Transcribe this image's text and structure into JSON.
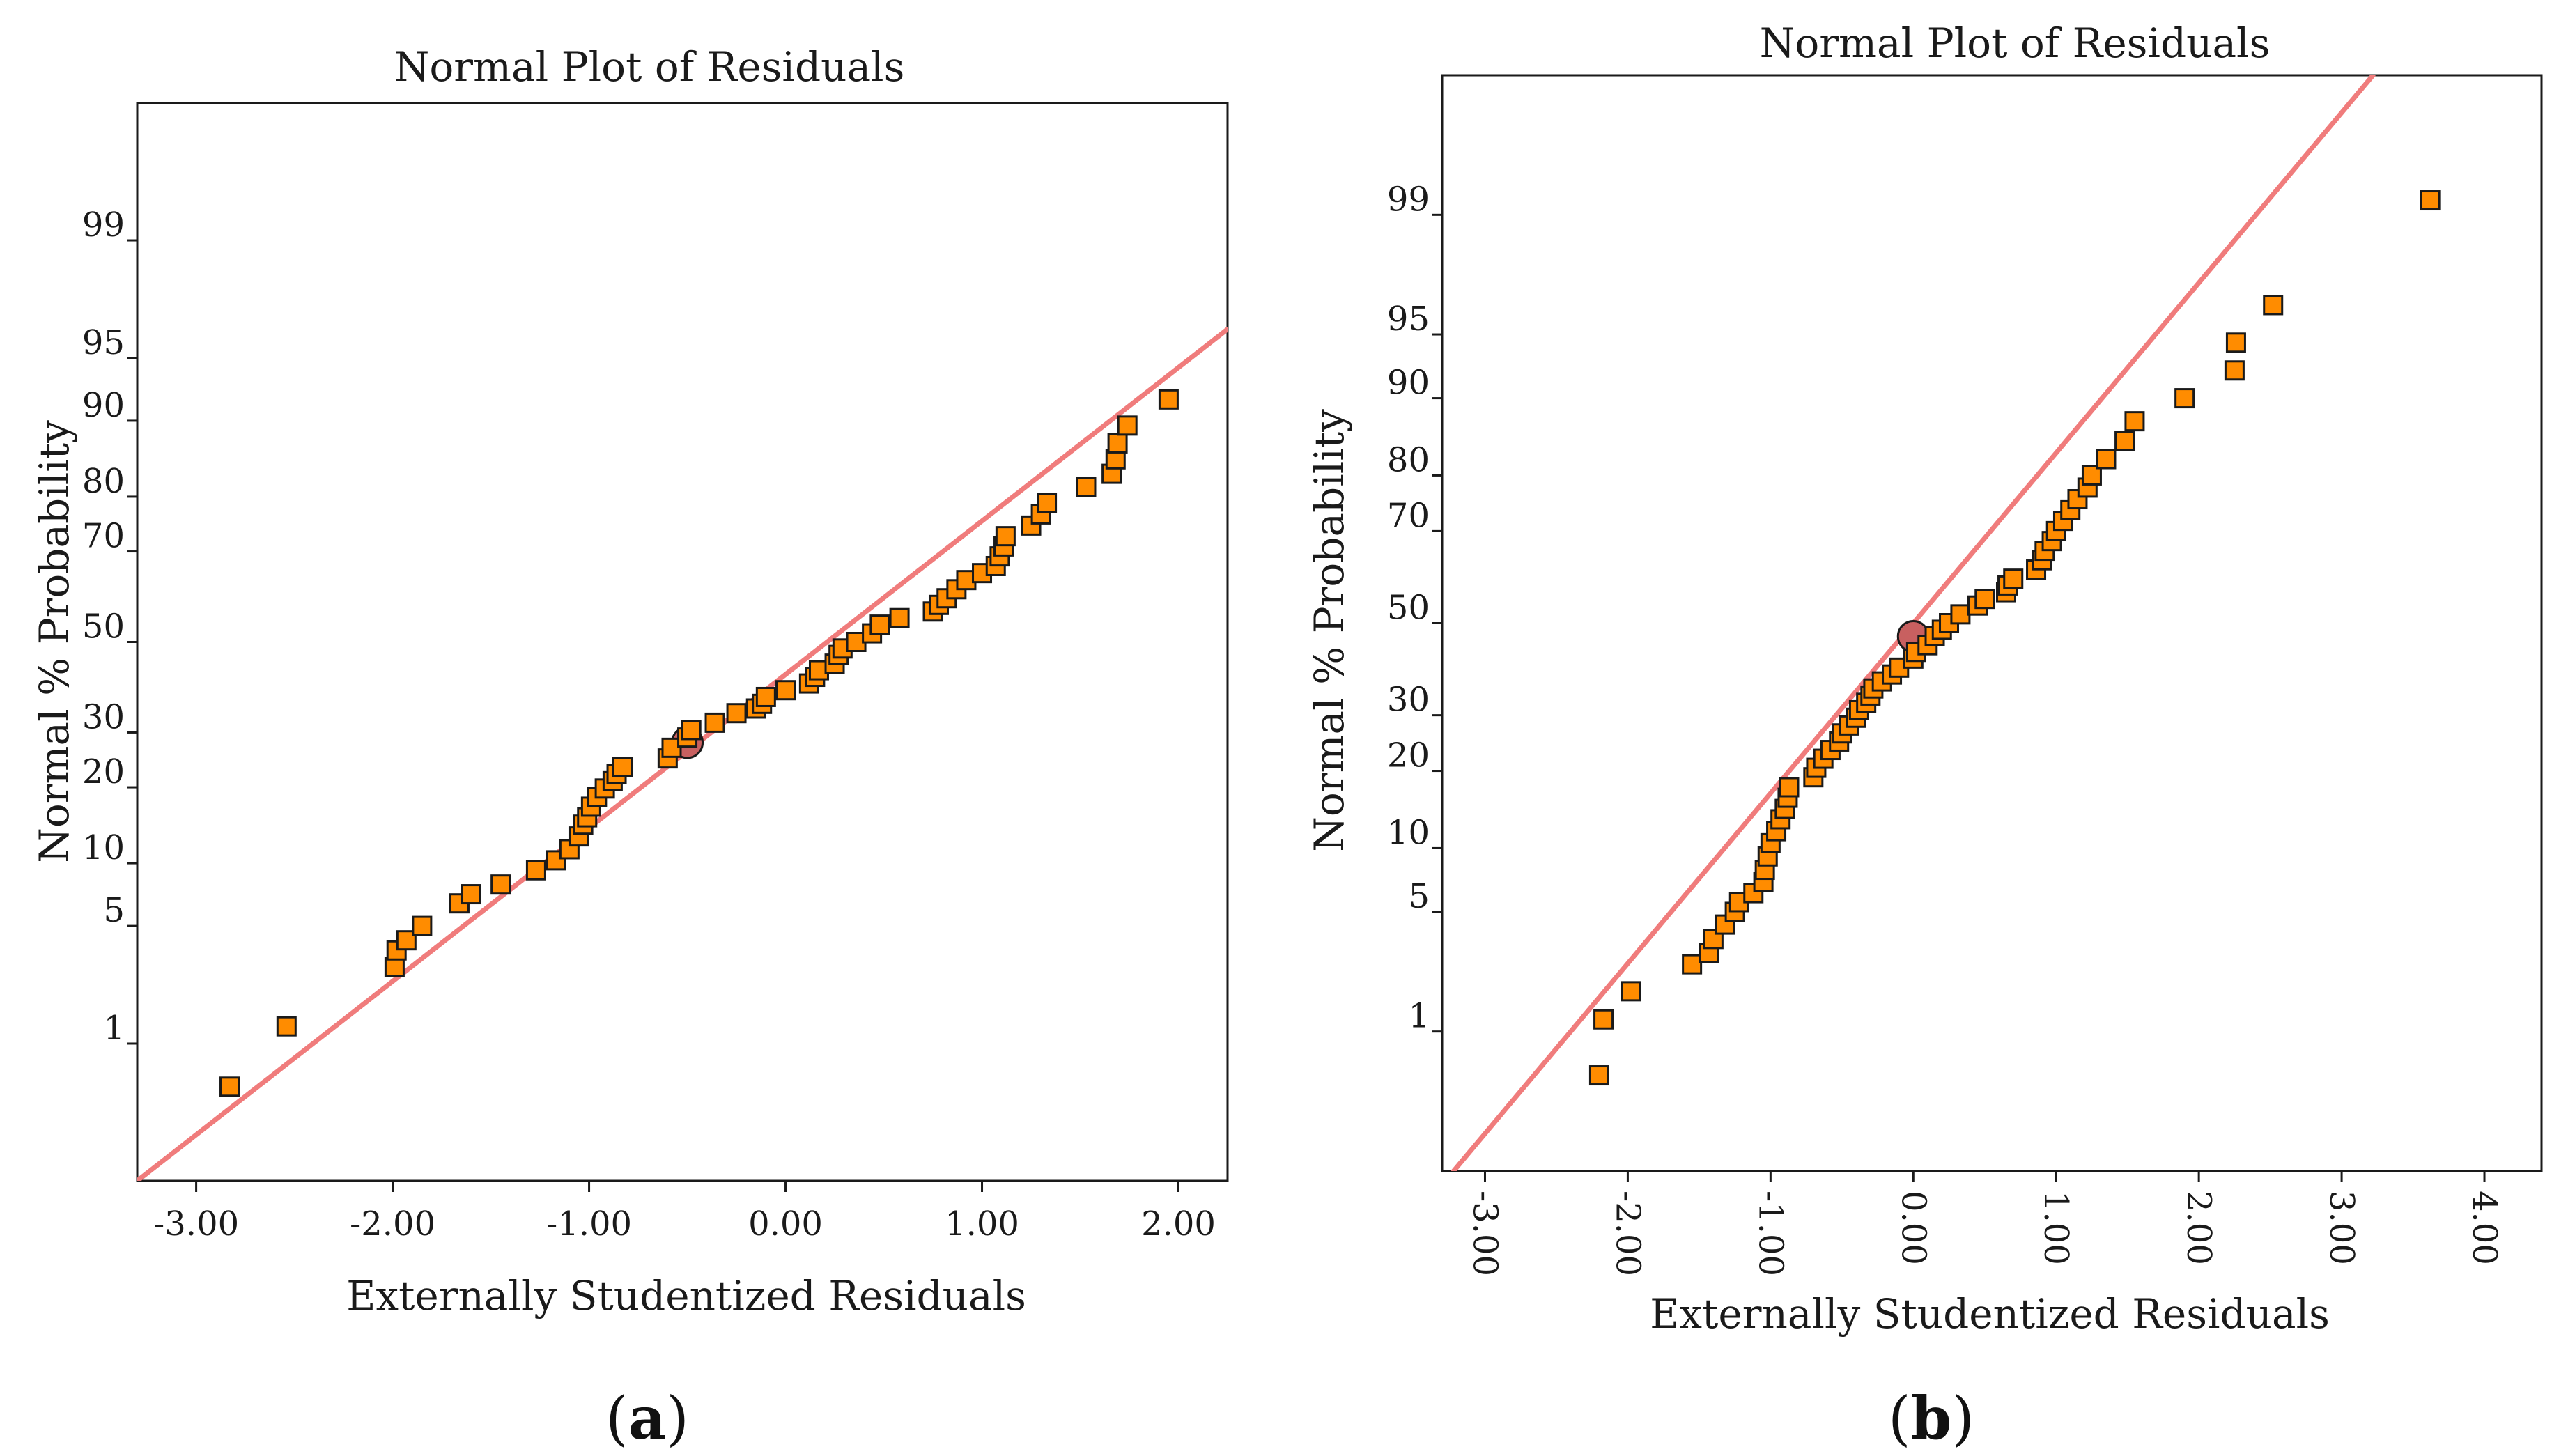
{
  "figure": {
    "point_color": "#FF8C00",
    "point_stroke": "#1a1a1a",
    "line_color": "#F07C7C",
    "highlight_color": "#C86060"
  },
  "chart_data": [
    {
      "type": "scatter",
      "panel_label": "(a)",
      "panel_letter": "a",
      "title": "Normal Plot of Residuals",
      "xlabel": "Externally Studentized Residuals",
      "ylabel": "Normal % Probability",
      "x_scale": "linear",
      "y_scale": "normal-probability",
      "xlim": [
        -3.3,
        2.25
      ],
      "ylim": [
        0.09,
        99.91
      ],
      "x_ticks": [
        -3,
        -2,
        -1,
        0,
        1,
        2
      ],
      "x_tick_labels": [
        "-3.00",
        "-2.00",
        "-1.00",
        "0.00",
        "1.00",
        "2.00"
      ],
      "x_tick_rotation": 0,
      "y_ticks": [
        1,
        5,
        10,
        20,
        30,
        50,
        70,
        80,
        90,
        95,
        99
      ],
      "y_tick_labels": [
        "1",
        "5",
        "10",
        "20",
        "30",
        "50",
        "70",
        "80",
        "90",
        "95",
        "99"
      ],
      "reference_line": {
        "x": [
          -3.3,
          2.25
        ],
        "y": [
          0.09,
          96.5
        ]
      },
      "highlight_point": {
        "x": -0.5,
        "y": 28
      },
      "series": [
        {
          "name": "Residuals",
          "marker": "square",
          "x": [
            -2.83,
            -2.54,
            -1.99,
            -1.98,
            -1.93,
            -1.85,
            -1.66,
            -1.6,
            -1.45,
            -1.27,
            -1.17,
            -1.1,
            -1.05,
            -1.03,
            -1.01,
            -0.99,
            -0.96,
            -0.92,
            -0.88,
            -0.86,
            -0.83,
            -0.6,
            -0.58,
            -0.5,
            -0.48,
            -0.36,
            -0.25,
            -0.15,
            -0.12,
            -0.1,
            0.0,
            0.12,
            0.15,
            0.17,
            0.25,
            0.27,
            0.29,
            0.36,
            0.44,
            0.48,
            0.58,
            0.75,
            0.78,
            0.82,
            0.87,
            0.92,
            1.0,
            1.07,
            1.09,
            1.11,
            1.12,
            1.25,
            1.3,
            1.33,
            1.53,
            1.66,
            1.68,
            1.69,
            1.74,
            1.95
          ],
          "y": [
            0.5,
            1.3,
            3,
            3.7,
            4.2,
            5,
            6.5,
            7.2,
            8,
            9.3,
            10.3,
            11.5,
            13,
            14.5,
            15.5,
            17,
            18.5,
            19.8,
            21,
            22.2,
            23.5,
            25,
            27,
            29,
            30.5,
            32,
            34,
            35,
            36,
            37.5,
            39,
            40.5,
            42,
            43.5,
            45,
            47,
            48.5,
            50,
            52,
            54,
            55.5,
            57,
            58.5,
            60,
            62,
            64,
            65.5,
            67,
            69,
            71,
            73,
            75,
            77,
            79,
            81.5,
            83.5,
            85.5,
            87.5,
            89.5,
            92
          ]
        }
      ]
    },
    {
      "type": "scatter",
      "panel_label": "(b)",
      "panel_letter": "b",
      "title": "Normal Plot of Residuals",
      "xlabel": "Externally Studentized Residuals",
      "ylabel": "Normal % Probability",
      "x_scale": "linear",
      "y_scale": "normal-probability",
      "xlim": [
        -3.3,
        4.4
      ],
      "ylim": [
        0.09,
        99.91
      ],
      "x_ticks": [
        -3,
        -2,
        -1,
        0,
        1,
        2,
        3,
        4
      ],
      "x_tick_labels": [
        "-3.00",
        "-2.00",
        "-1.00",
        "0.00",
        "1.00",
        "2.00",
        "3.00",
        "4.00"
      ],
      "x_tick_rotation": 90,
      "y_ticks": [
        1,
        5,
        10,
        20,
        30,
        50,
        70,
        80,
        90,
        95,
        99
      ],
      "y_tick_labels": [
        "1",
        "5",
        "10",
        "20",
        "30",
        "50",
        "70",
        "80",
        "90",
        "95",
        "99"
      ],
      "reference_line": {
        "x": [
          -3.22,
          3.22
        ],
        "y": [
          0.09,
          99.91
        ]
      },
      "highlight_point": {
        "x": 0.0,
        "y": 47
      },
      "series": [
        {
          "name": "Residuals",
          "marker": "square",
          "x": [
            -2.2,
            -2.17,
            -1.98,
            -1.55,
            -1.43,
            -1.4,
            -1.32,
            -1.25,
            -1.22,
            -1.12,
            -1.05,
            -1.04,
            -1.02,
            -1.0,
            -0.96,
            -0.93,
            -0.9,
            -0.88,
            -0.87,
            -0.7,
            -0.68,
            -0.63,
            -0.58,
            -0.52,
            -0.5,
            -0.45,
            -0.4,
            -0.38,
            -0.33,
            -0.3,
            -0.28,
            -0.22,
            -0.15,
            -0.1,
            0.0,
            0.02,
            0.1,
            0.15,
            0.2,
            0.25,
            0.33,
            0.45,
            0.5,
            0.65,
            0.66,
            0.7,
            0.86,
            0.9,
            0.92,
            0.97,
            1.0,
            1.05,
            1.1,
            1.15,
            1.22,
            1.25,
            1.35,
            1.48,
            1.55,
            1.9,
            2.25,
            2.26,
            2.52,
            3.62
          ],
          "y": [
            0.5,
            1.2,
            1.8,
            2.6,
            3,
            3.6,
            4.3,
            5,
            5.6,
            6.2,
            7,
            8,
            9.2,
            10.5,
            11.8,
            13.2,
            14.5,
            16,
            17.5,
            19,
            20.5,
            22,
            23.5,
            25,
            26.5,
            28,
            29.5,
            31,
            32.5,
            34,
            35.5,
            37,
            38.5,
            40,
            42,
            43.5,
            45,
            47,
            48.5,
            50,
            52,
            54,
            55.5,
            57,
            58.5,
            60,
            62,
            64,
            66,
            68,
            70,
            72,
            74,
            76,
            78,
            80,
            82.5,
            85,
            87.5,
            90,
            92.5,
            94.5,
            96.5,
            99.2
          ]
        }
      ]
    }
  ]
}
